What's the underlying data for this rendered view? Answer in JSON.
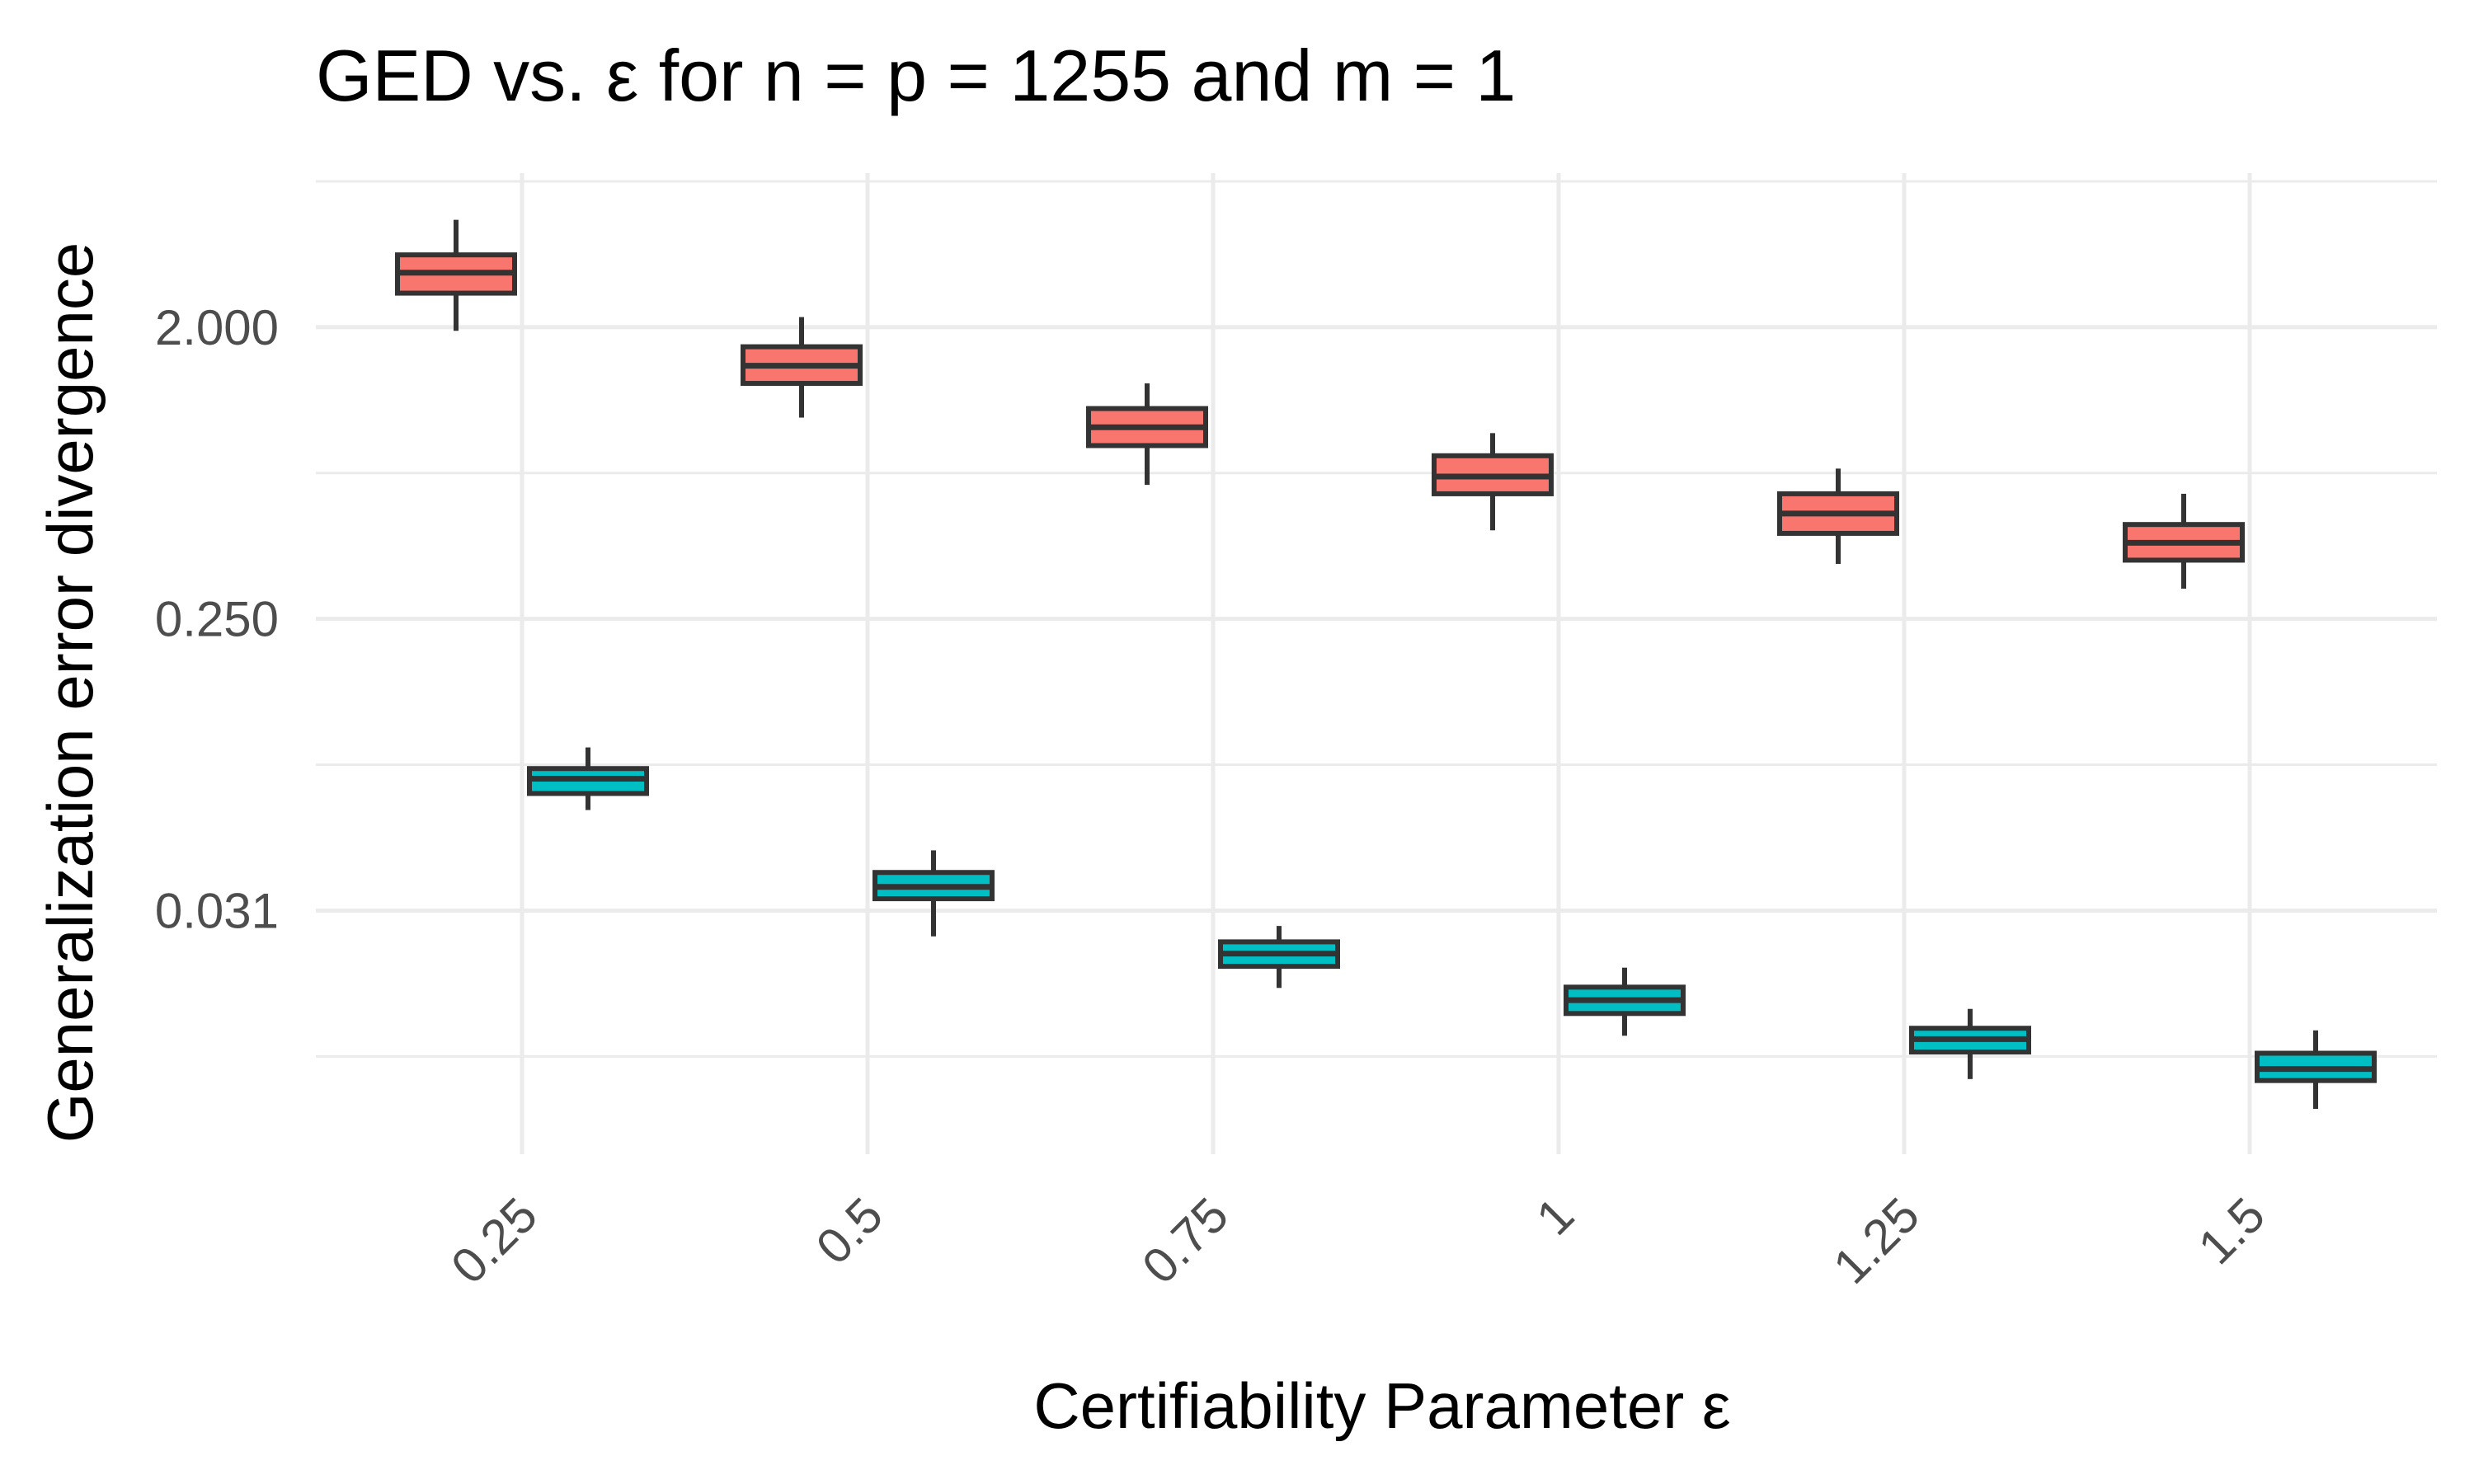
{
  "chart_data": {
    "type": "boxplot",
    "title": "GED vs. ε for n = p = 1255 and m = 1",
    "xlabel": "Certifiability Parameter ε",
    "ylabel": "Generalization error divergence",
    "y_scale": "log2",
    "y_ticks": [
      0.03125,
      0.25,
      2.0
    ],
    "y_tick_labels": [
      "0.031",
      "0.250",
      "2.000"
    ],
    "y_range": [
      0.0055,
      6.0
    ],
    "grid": true,
    "legend": "none",
    "categories": [
      "0.25",
      "0.5",
      "0.75",
      "1",
      "1.25",
      "1.5"
    ],
    "series": [
      {
        "color": "#F8766D",
        "boxes": [
          {
            "category": "0.25",
            "lower_whisker": 1.95,
            "q1": 2.55,
            "median": 2.95,
            "q3": 3.35,
            "upper_whisker": 4.3
          },
          {
            "category": "0.5",
            "lower_whisker": 1.05,
            "q1": 1.34,
            "median": 1.52,
            "q3": 1.74,
            "upper_whisker": 2.15
          },
          {
            "category": "0.75",
            "lower_whisker": 0.65,
            "q1": 0.86,
            "median": 0.98,
            "q3": 1.12,
            "upper_whisker": 1.34
          },
          {
            "category": "1",
            "lower_whisker": 0.47,
            "q1": 0.61,
            "median": 0.69,
            "q3": 0.8,
            "upper_whisker": 0.94
          },
          {
            "category": "1.25",
            "lower_whisker": 0.37,
            "q1": 0.46,
            "median": 0.53,
            "q3": 0.61,
            "upper_whisker": 0.73
          },
          {
            "category": "1.5",
            "lower_whisker": 0.31,
            "q1": 0.38,
            "median": 0.43,
            "q3": 0.49,
            "upper_whisker": 0.61
          }
        ]
      },
      {
        "color": "#00BFC4",
        "boxes": [
          {
            "category": "0.25",
            "lower_whisker": 0.064,
            "q1": 0.072,
            "median": 0.08,
            "q3": 0.086,
            "upper_whisker": 0.1
          },
          {
            "category": "0.5",
            "lower_whisker": 0.026,
            "q1": 0.034,
            "median": 0.037,
            "q3": 0.041,
            "upper_whisker": 0.048
          },
          {
            "category": "0.75",
            "lower_whisker": 0.018,
            "q1": 0.021,
            "median": 0.023,
            "q3": 0.025,
            "upper_whisker": 0.028
          },
          {
            "category": "1",
            "lower_whisker": 0.0128,
            "q1": 0.015,
            "median": 0.0165,
            "q3": 0.0181,
            "upper_whisker": 0.0208
          },
          {
            "category": "1.25",
            "lower_whisker": 0.0094,
            "q1": 0.0114,
            "median": 0.0125,
            "q3": 0.0135,
            "upper_whisker": 0.0155
          },
          {
            "category": "1.5",
            "lower_whisker": 0.0076,
            "q1": 0.0093,
            "median": 0.0101,
            "q3": 0.0113,
            "upper_whisker": 0.0133
          }
        ]
      }
    ]
  }
}
